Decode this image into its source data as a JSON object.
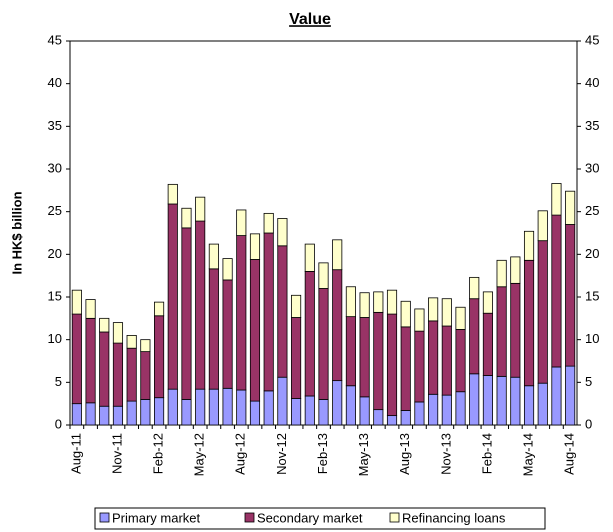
{
  "chart_data": {
    "type": "stacked_bar",
    "title": "Value",
    "y_label": "In HK$ billion",
    "categories": [
      "Aug-11",
      null,
      null,
      "Nov-11",
      null,
      null,
      "Feb-12",
      null,
      null,
      "May-12",
      null,
      null,
      "Aug-12",
      null,
      null,
      "Nov-12",
      null,
      null,
      "Feb-13",
      null,
      null,
      "May-13",
      null,
      null,
      "Aug-13",
      null,
      null,
      "Nov-13",
      null,
      null,
      "Feb-14",
      null,
      null,
      "May-14",
      null,
      null,
      "Aug-14"
    ],
    "series": [
      {
        "name": "Primary market",
        "color": "#9999ff",
        "values": [
          2.5,
          2.6,
          2.2,
          2.2,
          2.8,
          3.0,
          3.2,
          4.2,
          3.0,
          4.2,
          4.2,
          4.3,
          4.1,
          2.8,
          4.0,
          5.6,
          3.1,
          3.4,
          3.0,
          5.2,
          4.6,
          3.3,
          1.8,
          1.1,
          1.7,
          2.7,
          3.6,
          3.5,
          3.9,
          6.0,
          5.8,
          5.7,
          5.6,
          4.6,
          4.9,
          6.8,
          6.9
        ]
      },
      {
        "name": "Secondary market",
        "color": "#993366",
        "values": [
          10.5,
          9.9,
          8.7,
          7.4,
          6.2,
          5.6,
          9.6,
          21.7,
          20.1,
          19.7,
          14.1,
          12.7,
          18.1,
          16.6,
          18.5,
          15.4,
          9.5,
          14.6,
          13.0,
          13.0,
          8.1,
          9.3,
          11.4,
          11.9,
          9.8,
          8.3,
          8.6,
          8.1,
          7.3,
          8.8,
          7.3,
          10.5,
          11.0,
          14.7,
          16.7,
          17.8,
          16.6
        ]
      },
      {
        "name": "Refinancing loans",
        "color": "#ffffcc",
        "values": [
          2.8,
          2.2,
          1.6,
          2.4,
          1.5,
          1.4,
          1.6,
          2.3,
          2.3,
          2.8,
          2.9,
          2.5,
          3.0,
          3.0,
          2.3,
          3.2,
          2.6,
          3.2,
          3.0,
          3.5,
          3.5,
          2.9,
          2.4,
          2.8,
          3.0,
          2.6,
          2.7,
          3.2,
          2.6,
          2.5,
          2.5,
          3.1,
          3.1,
          3.4,
          3.5,
          3.7,
          3.9
        ]
      }
    ],
    "ylim": [
      0,
      45
    ],
    "yticks": [
      0,
      5,
      10,
      15,
      20,
      25,
      30,
      35,
      40,
      45
    ],
    "y2lim": [
      0,
      45
    ],
    "y2ticks": [
      0,
      5,
      10,
      15,
      20,
      25,
      30,
      35,
      40,
      45
    ],
    "legend": "bottom"
  }
}
